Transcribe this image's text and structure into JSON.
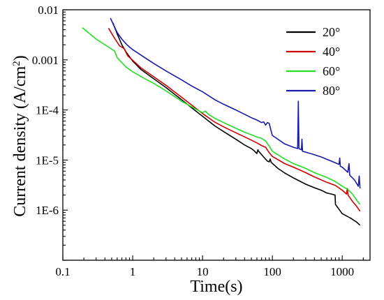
{
  "chart_data": {
    "type": "line",
    "xlabel": "Time(s)",
    "ylabel": "Current density (A/cm",
    "ylabel_sup": "2",
    "ylabel_end": ")",
    "x_scale": "log",
    "y_scale": "log",
    "xlim": [
      0.1,
      2500
    ],
    "ylim": [
      1e-07,
      0.01
    ],
    "grid": false,
    "legend_position": "top-right",
    "x_ticks": [
      {
        "value": 0.1,
        "label": "0.1"
      },
      {
        "value": 1,
        "label": "1"
      },
      {
        "value": 10,
        "label": "10"
      },
      {
        "value": 100,
        "label": "100"
      },
      {
        "value": 1000,
        "label": "1000"
      }
    ],
    "y_ticks": [
      {
        "value": 0.01,
        "label": "0.01"
      },
      {
        "value": 0.001,
        "label": "0.001"
      },
      {
        "value": 0.0001,
        "label": "1E-4"
      },
      {
        "value": 1e-05,
        "label": "1E-5"
      },
      {
        "value": 1e-06,
        "label": "1E-6"
      }
    ],
    "series": [
      {
        "name": "20°",
        "color": "#000000",
        "points": [
          [
            0.52,
            0.0055
          ],
          [
            0.6,
            0.0033
          ],
          [
            0.7,
            0.002
          ],
          [
            0.8,
            0.00145
          ],
          [
            0.9,
            0.00115
          ],
          [
            1.0,
            0.00095
          ],
          [
            1.3,
            0.00065
          ],
          [
            2,
            0.00042
          ],
          [
            3,
            0.00028
          ],
          [
            5,
            0.00016
          ],
          [
            7,
            0.00011
          ],
          [
            10,
            7.5e-05
          ],
          [
            15,
            4.8e-05
          ],
          [
            20,
            3.7e-05
          ],
          [
            30,
            2.6e-05
          ],
          [
            40,
            2e-05
          ],
          [
            50,
            1.7e-05
          ],
          [
            55,
            1.52e-05
          ],
          [
            60,
            1.35e-05
          ],
          [
            62,
            1.6e-05
          ],
          [
            63,
            1.52e-05
          ],
          [
            75,
            1.15e-05
          ],
          [
            85,
            9.5e-06
          ],
          [
            90,
            9.2e-06
          ],
          [
            93,
            1.05e-05
          ],
          [
            96,
            9e-06
          ],
          [
            120,
            6.8e-06
          ],
          [
            150,
            5.5e-06
          ],
          [
            200,
            4.4e-06
          ],
          [
            300,
            3.3e-06
          ],
          [
            400,
            2.8e-06
          ],
          [
            500,
            2.5e-06
          ],
          [
            600,
            2.2e-06
          ],
          [
            700,
            2.1e-06
          ],
          [
            790,
            2e-06
          ],
          [
            800,
            1.3e-06
          ],
          [
            1000,
            8.5e-07
          ],
          [
            1300,
            7e-07
          ],
          [
            1600,
            5.8e-07
          ],
          [
            1800,
            5e-07
          ]
        ]
      },
      {
        "name": "40°",
        "color": "#cc0000",
        "points": [
          [
            0.45,
            0.0043
          ],
          [
            0.55,
            0.0027
          ],
          [
            0.65,
            0.0019
          ],
          [
            0.75,
            0.0017
          ],
          [
            0.85,
            0.0012
          ],
          [
            1.0,
            0.00098
          ],
          [
            1.3,
            0.0007
          ],
          [
            2,
            0.00046
          ],
          [
            3,
            0.00031
          ],
          [
            5,
            0.00018
          ],
          [
            7,
            0.000125
          ],
          [
            10,
            8.5e-05
          ],
          [
            15,
            5.7e-05
          ],
          [
            20,
            4.6e-05
          ],
          [
            30,
            3.5e-05
          ],
          [
            40,
            2.9e-05
          ],
          [
            50,
            2.5e-05
          ],
          [
            60,
            2.2e-05
          ],
          [
            70,
            1.95e-05
          ],
          [
            80,
            1.8e-05
          ],
          [
            90,
            1.4e-05
          ],
          [
            100,
            1.18e-05
          ],
          [
            150,
            8.5e-06
          ],
          [
            200,
            7.2e-06
          ],
          [
            300,
            5.6e-06
          ],
          [
            400,
            4.6e-06
          ],
          [
            600,
            3.6e-06
          ],
          [
            800,
            3.1e-06
          ],
          [
            1000,
            2.5e-06
          ],
          [
            1150,
            2.1e-06
          ],
          [
            1180,
            2.7e-06
          ],
          [
            1210,
            2e-06
          ],
          [
            1400,
            1.5e-06
          ],
          [
            1600,
            1.2e-06
          ],
          [
            1800,
            9.5e-07
          ]
        ]
      },
      {
        "name": "60°",
        "color": "#22dd22",
        "points": [
          [
            0.19,
            0.0044
          ],
          [
            0.3,
            0.0026
          ],
          [
            0.45,
            0.0018
          ],
          [
            0.55,
            0.0015
          ],
          [
            0.6,
            0.0011
          ],
          [
            0.8,
            0.00072
          ],
          [
            1.0,
            0.00058
          ],
          [
            1.5,
            0.00042
          ],
          [
            2,
            0.00034
          ],
          [
            3,
            0.00024
          ],
          [
            5,
            0.00015
          ],
          [
            7,
            0.000115
          ],
          [
            10,
            8.8e-05
          ],
          [
            11,
            9.5e-05
          ],
          [
            12,
            8.3e-05
          ],
          [
            15,
            6.8e-05
          ],
          [
            20,
            5.6e-05
          ],
          [
            30,
            4.3e-05
          ],
          [
            40,
            3.6e-05
          ],
          [
            50,
            3.2e-05
          ],
          [
            60,
            2.9e-05
          ],
          [
            70,
            2.7e-05
          ],
          [
            80,
            2.4e-05
          ],
          [
            90,
            1.9e-05
          ],
          [
            100,
            1.5e-05
          ],
          [
            150,
            1.05e-05
          ],
          [
            200,
            8.5e-06
          ],
          [
            300,
            6.8e-06
          ],
          [
            400,
            5.6e-06
          ],
          [
            600,
            4.5e-06
          ],
          [
            800,
            3.7e-06
          ],
          [
            1000,
            3e-06
          ],
          [
            1200,
            2.6e-06
          ],
          [
            1400,
            2.1e-06
          ],
          [
            1600,
            1.6e-06
          ],
          [
            1800,
            1.3e-06
          ]
        ]
      },
      {
        "name": "80°",
        "color": "#1a1aaa",
        "points": [
          [
            0.48,
            0.0068
          ],
          [
            0.55,
            0.0045
          ],
          [
            0.6,
            0.0035
          ],
          [
            0.7,
            0.0026
          ],
          [
            0.8,
            0.0021
          ],
          [
            0.9,
            0.0018
          ],
          [
            1.0,
            0.0016
          ],
          [
            1.5,
            0.0011
          ],
          [
            2,
            0.00085
          ],
          [
            3,
            0.0006
          ],
          [
            5,
            0.0004
          ],
          [
            7,
            0.0003
          ],
          [
            10,
            0.00023
          ],
          [
            15,
            0.00016
          ],
          [
            20,
            0.00013
          ],
          [
            30,
            0.0001
          ],
          [
            40,
            8.2e-05
          ],
          [
            50,
            7e-05
          ],
          [
            60,
            6.3e-05
          ],
          [
            70,
            5.6e-05
          ],
          [
            75,
            5.8e-05
          ],
          [
            80,
            5e-05
          ],
          [
            85,
            5.6e-05
          ],
          [
            90,
            5.4e-05
          ],
          [
            95,
            4e-05
          ],
          [
            100,
            3.1e-05
          ],
          [
            150,
            2.1e-05
          ],
          [
            200,
            1.8e-05
          ],
          [
            230,
            1.7e-05
          ],
          [
            235,
            0.00015
          ],
          [
            240,
            1.7e-05
          ],
          [
            260,
            1.6e-05
          ],
          [
            265,
            2.6e-05
          ],
          [
            270,
            1.5e-05
          ],
          [
            350,
            1.35e-05
          ],
          [
            500,
            1.15e-05
          ],
          [
            700,
            9.5e-06
          ],
          [
            900,
            8.2e-06
          ],
          [
            920,
            1.1e-05
          ],
          [
            940,
            7.5e-06
          ],
          [
            1000,
            7.2e-06
          ],
          [
            1200,
            5.7e-06
          ],
          [
            1250,
            8.5e-06
          ],
          [
            1280,
            5e-06
          ],
          [
            1500,
            4e-06
          ],
          [
            1700,
            3e-06
          ],
          [
            1750,
            4.8e-06
          ],
          [
            1800,
            2.7e-06
          ]
        ]
      }
    ]
  }
}
